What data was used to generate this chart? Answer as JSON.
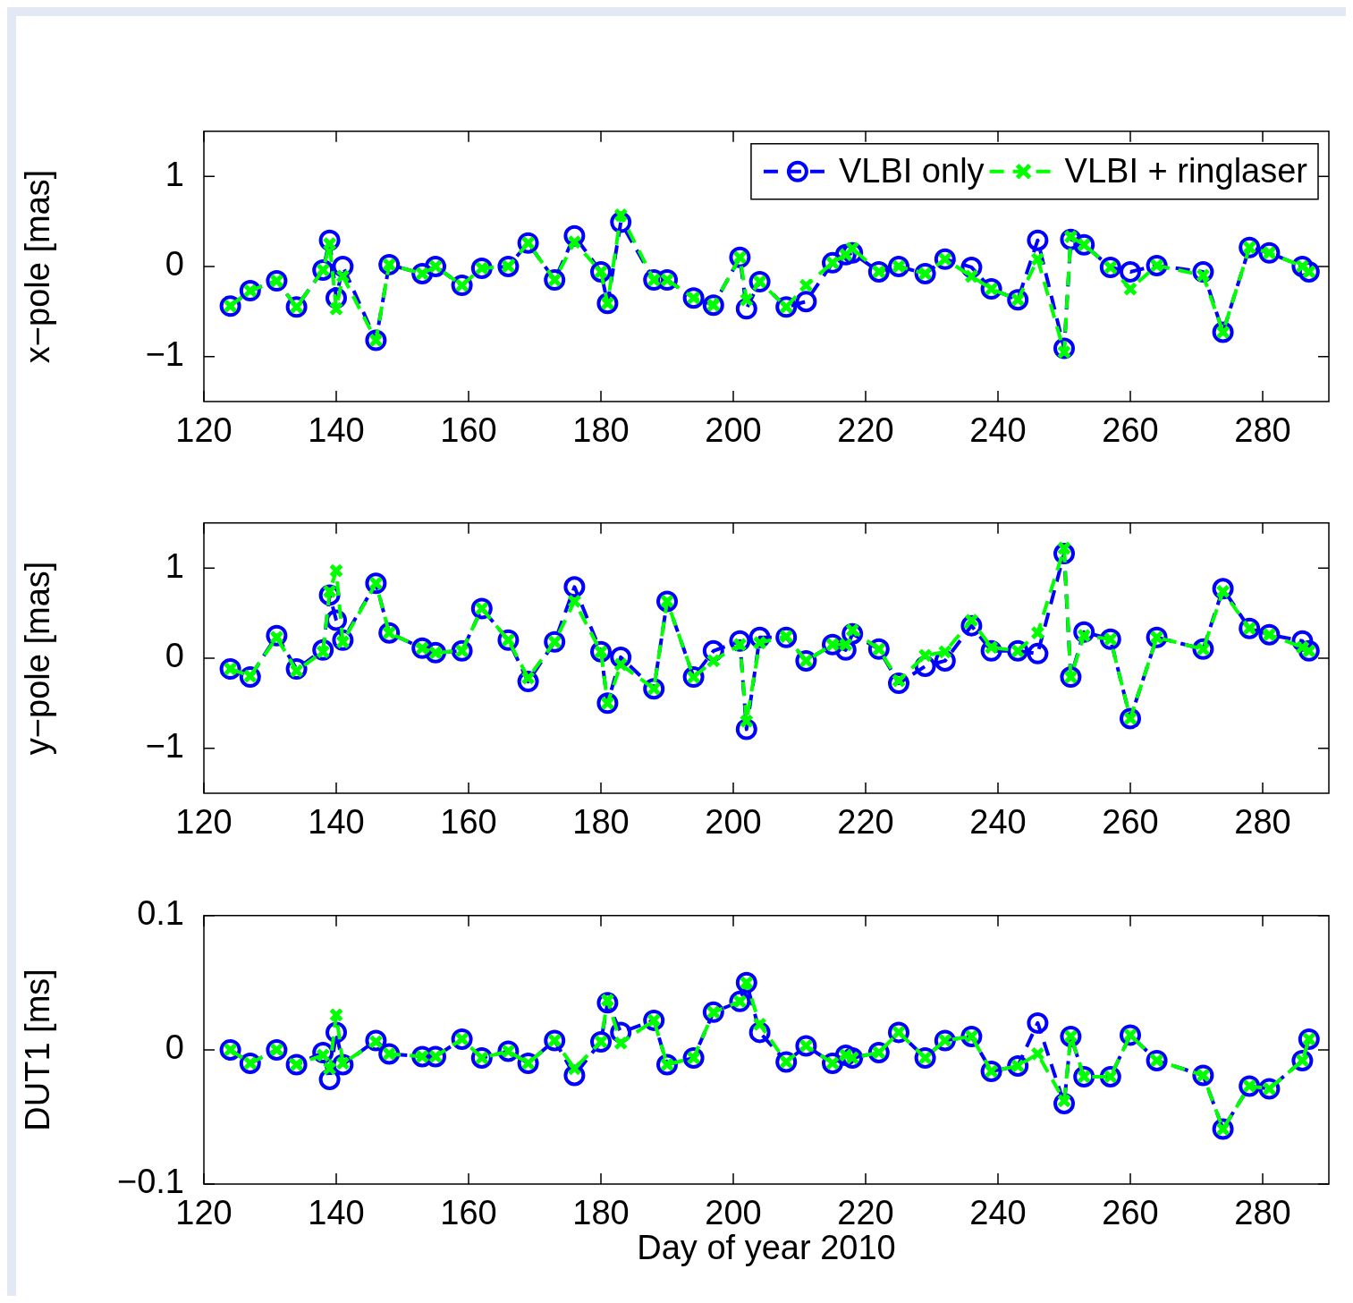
{
  "chart_data": [
    {
      "type": "line",
      "ylabel": "x−pole [mas]",
      "legend": "top right",
      "xlim": [
        120,
        290
      ],
      "xticks": [
        120,
        140,
        160,
        180,
        200,
        220,
        240,
        260,
        280
      ],
      "ylim": [
        -1.5,
        1.5
      ],
      "yticks": [
        -1,
        0,
        1
      ],
      "x": [
        124,
        127,
        131,
        134,
        138,
        139,
        140,
        141,
        146,
        148,
        153,
        155,
        159,
        162,
        166,
        169,
        173,
        176,
        180,
        181,
        183,
        188,
        190,
        194,
        197,
        201,
        202,
        204,
        208,
        211,
        215,
        217,
        218,
        222,
        225,
        229,
        232,
        236,
        239,
        243,
        246,
        250,
        251,
        253,
        257,
        260,
        264,
        271,
        274,
        278,
        281,
        286,
        287
      ],
      "series": [
        {
          "name": "VLBI only",
          "color": "#0000ff",
          "marker": "circle",
          "line_style": "dashed",
          "values": [
            -0.44,
            -0.27,
            -0.16,
            -0.45,
            -0.04,
            0.29,
            -0.35,
            0,
            -0.82,
            0.02,
            -0.08,
            0,
            -0.21,
            -0.02,
            0,
            0.26,
            -0.15,
            0.34,
            -0.06,
            -0.41,
            0.49,
            -0.15,
            -0.15,
            -0.35,
            -0.43,
            0.1,
            -0.47,
            -0.17,
            -0.45,
            -0.39,
            0.04,
            0.13,
            0.15,
            -0.06,
            0,
            -0.08,
            0.08,
            -0.01,
            -0.25,
            -0.37,
            0.29,
            -0.91,
            0.3,
            0.24,
            -0.01,
            -0.06,
            0.01,
            -0.06,
            -0.73,
            0.21,
            0.15,
            0,
            -0.06
          ]
        },
        {
          "name": "VLBI + ringlaser",
          "color": "#00ff00",
          "marker": "cross",
          "line_style": "dashed",
          "values": [
            -0.44,
            -0.27,
            -0.16,
            -0.45,
            -0.04,
            0.25,
            -0.47,
            -0.11,
            -0.82,
            0.02,
            -0.08,
            0,
            -0.21,
            -0.02,
            0,
            0.26,
            -0.15,
            0.27,
            -0.06,
            -0.41,
            0.57,
            -0.15,
            -0.15,
            -0.35,
            -0.43,
            0.1,
            -0.37,
            -0.17,
            -0.45,
            -0.21,
            0.04,
            0.13,
            0.2,
            -0.06,
            0,
            -0.08,
            0.08,
            -0.11,
            -0.25,
            -0.37,
            0.08,
            -0.95,
            0.33,
            0.24,
            -0.01,
            -0.25,
            0.01,
            -0.1,
            -0.73,
            0.21,
            0.15,
            0,
            -0.06
          ]
        }
      ]
    },
    {
      "type": "line",
      "ylabel": "y−pole [mas]",
      "xlim": [
        120,
        290
      ],
      "xticks": [
        120,
        140,
        160,
        180,
        200,
        220,
        240,
        260,
        280
      ],
      "ylim": [
        -1.5,
        1.5
      ],
      "yticks": [
        -1,
        0,
        1
      ],
      "x": [
        124,
        127,
        131,
        134,
        138,
        139,
        140,
        141,
        146,
        148,
        153,
        155,
        159,
        162,
        166,
        169,
        173,
        176,
        180,
        181,
        183,
        188,
        190,
        194,
        197,
        201,
        202,
        204,
        208,
        211,
        215,
        217,
        218,
        222,
        225,
        229,
        232,
        236,
        239,
        243,
        246,
        250,
        251,
        253,
        257,
        260,
        264,
        271,
        274,
        278,
        281,
        286,
        287
      ],
      "series": [
        {
          "color": "#0000ff",
          "marker": "circle",
          "line_style": "dashed",
          "values": [
            -0.12,
            -0.21,
            0.25,
            -0.12,
            0.09,
            0.7,
            0.42,
            0.2,
            0.83,
            0.28,
            0.11,
            0.06,
            0.08,
            0.55,
            0.2,
            -0.26,
            0.18,
            0.79,
            0.07,
            -0.5,
            0.01,
            -0.34,
            0.63,
            -0.21,
            0.08,
            0.19,
            -0.79,
            0.23,
            0.23,
            -0.03,
            0.15,
            0.09,
            0.27,
            0.1,
            -0.28,
            -0.09,
            -0.03,
            0.36,
            0.08,
            0.08,
            0.05,
            1.16,
            -0.21,
            0.29,
            0.21,
            -0.67,
            0.23,
            0.1,
            0.77,
            0.33,
            0.26,
            0.19,
            0.08
          ]
        },
        {
          "color": "#00ff00",
          "marker": "cross",
          "line_style": "dashed",
          "values": [
            -0.12,
            -0.2,
            0.23,
            -0.14,
            0.07,
            0.74,
            0.97,
            0.18,
            0.83,
            0.28,
            0.11,
            0.06,
            0.08,
            0.55,
            0.2,
            -0.22,
            0.18,
            0.63,
            0.07,
            -0.5,
            -0.07,
            -0.34,
            0.63,
            -0.21,
            -0.03,
            0.15,
            -0.7,
            0.17,
            0.24,
            -0.03,
            0.15,
            0.15,
            0.31,
            0.1,
            -0.25,
            0.03,
            0.07,
            0.42,
            0.12,
            0.08,
            0.28,
            1.22,
            -0.21,
            0.25,
            0.21,
            -0.67,
            0.23,
            0.1,
            0.74,
            0.33,
            0.26,
            0.12,
            0.08
          ]
        }
      ]
    },
    {
      "type": "line",
      "ylabel": "DUT1 [ms]",
      "xlabel": "Day of year 2010",
      "xlim": [
        120,
        290
      ],
      "xticks": [
        120,
        140,
        160,
        180,
        200,
        220,
        240,
        260,
        280
      ],
      "ylim": [
        -0.1,
        0.1
      ],
      "yticks": [
        -0.1,
        0,
        0.1
      ],
      "x": [
        124,
        127,
        131,
        134,
        138,
        139,
        140,
        141,
        146,
        148,
        153,
        155,
        159,
        162,
        166,
        169,
        173,
        176,
        180,
        181,
        183,
        188,
        190,
        194,
        197,
        201,
        202,
        204,
        208,
        211,
        215,
        217,
        218,
        222,
        225,
        229,
        232,
        236,
        239,
        243,
        246,
        250,
        251,
        253,
        257,
        260,
        264,
        271,
        274,
        278,
        281,
        286,
        287
      ],
      "series": [
        {
          "color": "#0000ff",
          "marker": "circle",
          "line_style": "dashed",
          "values": [
            0,
            -0.01,
            0,
            -0.011,
            -0.002,
            -0.022,
            0.013,
            -0.011,
            0.007,
            -0.003,
            -0.005,
            -0.005,
            0.008,
            -0.006,
            -0.001,
            -0.01,
            0.007,
            -0.019,
            0.006,
            0.035,
            0.013,
            0.022,
            -0.011,
            -0.006,
            0.028,
            0.036,
            0.05,
            0.013,
            -0.009,
            0.003,
            -0.01,
            -0.004,
            -0.006,
            -0.002,
            0.013,
            -0.006,
            0.007,
            0.01,
            -0.016,
            -0.012,
            0.02,
            -0.04,
            0.01,
            -0.02,
            -0.02,
            0.011,
            -0.008,
            -0.019,
            -0.059,
            -0.027,
            -0.029,
            -0.008,
            0.008
          ]
        },
        {
          "color": "#00ff00",
          "marker": "cross",
          "line_style": "dashed",
          "values": [
            0,
            -0.01,
            0,
            -0.011,
            -0.004,
            -0.014,
            0.026,
            -0.01,
            0.006,
            -0.003,
            -0.005,
            -0.005,
            0.008,
            -0.006,
            -0.001,
            -0.01,
            0.007,
            -0.014,
            0.006,
            0.037,
            0.005,
            0.022,
            -0.011,
            -0.006,
            0.028,
            0.036,
            0.05,
            0.019,
            -0.009,
            0.003,
            -0.01,
            -0.004,
            -0.006,
            -0.002,
            0.013,
            -0.006,
            0.007,
            0.01,
            -0.016,
            -0.012,
            -0.003,
            -0.038,
            0.01,
            -0.02,
            -0.02,
            0.011,
            -0.008,
            -0.019,
            -0.059,
            -0.027,
            -0.029,
            -0.008,
            0.008
          ]
        }
      ]
    }
  ]
}
